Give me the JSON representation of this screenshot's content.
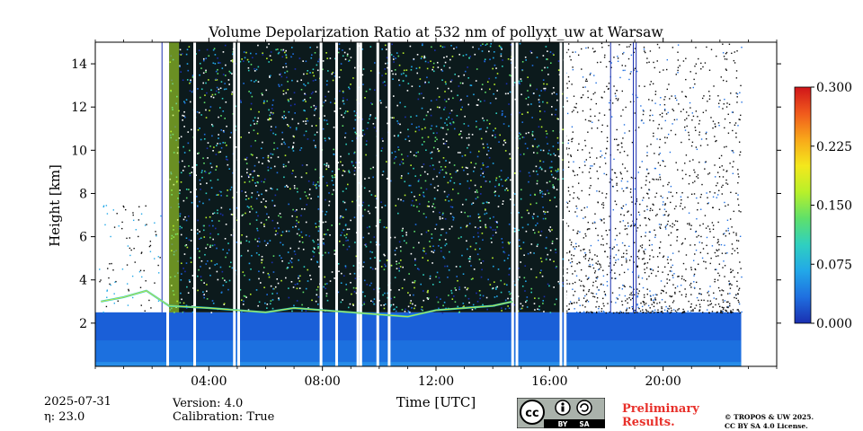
{
  "chart_data": {
    "type": "heatmap",
    "title": "Volume Depolarization Ratio at 532 nm of pollyxt_uw at Warsaw",
    "xlabel": "Time [UTC]",
    "ylabel": "Height [km]",
    "xlim_hours": [
      0,
      24
    ],
    "ylim_km": [
      0,
      15
    ],
    "x_ticks": [
      {
        "hour": 4,
        "label": "04:00"
      },
      {
        "hour": 8,
        "label": "08:00"
      },
      {
        "hour": 12,
        "label": "12:00"
      },
      {
        "hour": 16,
        "label": "16:00"
      },
      {
        "hour": 20,
        "label": "20:00"
      }
    ],
    "y_ticks": [
      2,
      4,
      6,
      8,
      10,
      12,
      14
    ],
    "colorbar": {
      "min": 0.0,
      "max": 0.3,
      "ticks": [
        "0.000",
        "0.075",
        "0.150",
        "0.225",
        "0.300"
      ],
      "colormap": [
        "#1a2fb0",
        "#1f6fe0",
        "#22a8e8",
        "#2fd0c0",
        "#5fe06a",
        "#b8f02a",
        "#f4e81c",
        "#f8a81a",
        "#f05a1c",
        "#d0151a"
      ]
    },
    "data_extent_hours": [
      0,
      22.75
    ],
    "low_layer": {
      "top_km": 2.5,
      "value": 0.02
    },
    "noise_region_hours": [
      2.6,
      22.75
    ],
    "dense_noise_hours": [
      2.6,
      16.5
    ],
    "gap_lines_hours": [
      2.55,
      3.5,
      4.9,
      5.05,
      7.95,
      8.5,
      9.25,
      9.35,
      9.95,
      10.35,
      14.7,
      14.85,
      16.4,
      16.55
    ],
    "dark_lines_hours": [
      2.35,
      18.15,
      18.95,
      19.05
    ],
    "boundary_layer_points": [
      {
        "t": 0.2,
        "h": 3.0
      },
      {
        "t": 1.0,
        "h": 3.2
      },
      {
        "t": 1.8,
        "h": 3.5
      },
      {
        "t": 2.6,
        "h": 2.8
      },
      {
        "t": 4.0,
        "h": 2.7
      },
      {
        "t": 5.0,
        "h": 2.6
      },
      {
        "t": 6.0,
        "h": 2.5
      },
      {
        "t": 7.0,
        "h": 2.7
      },
      {
        "t": 8.0,
        "h": 2.6
      },
      {
        "t": 9.0,
        "h": 2.5
      },
      {
        "t": 10.0,
        "h": 2.4
      },
      {
        "t": 11.0,
        "h": 2.3
      },
      {
        "t": 12.0,
        "h": 2.6
      },
      {
        "t": 13.0,
        "h": 2.7
      },
      {
        "t": 14.0,
        "h": 2.8
      },
      {
        "t": 14.7,
        "h": 3.0
      }
    ]
  },
  "meta": {
    "date": "2025-07-31",
    "eta": "η: 23.0",
    "version": "Version: 4.0",
    "calibration": "Calibration: True"
  },
  "branding": {
    "preliminary": "Preliminary Results.",
    "copyright_line1": "© TROPOS & UW 2025.",
    "copyright_line2": "CC BY SA 4.0 License.",
    "cc_text": "cc",
    "by_text": "BY",
    "sa_text": "SA"
  }
}
